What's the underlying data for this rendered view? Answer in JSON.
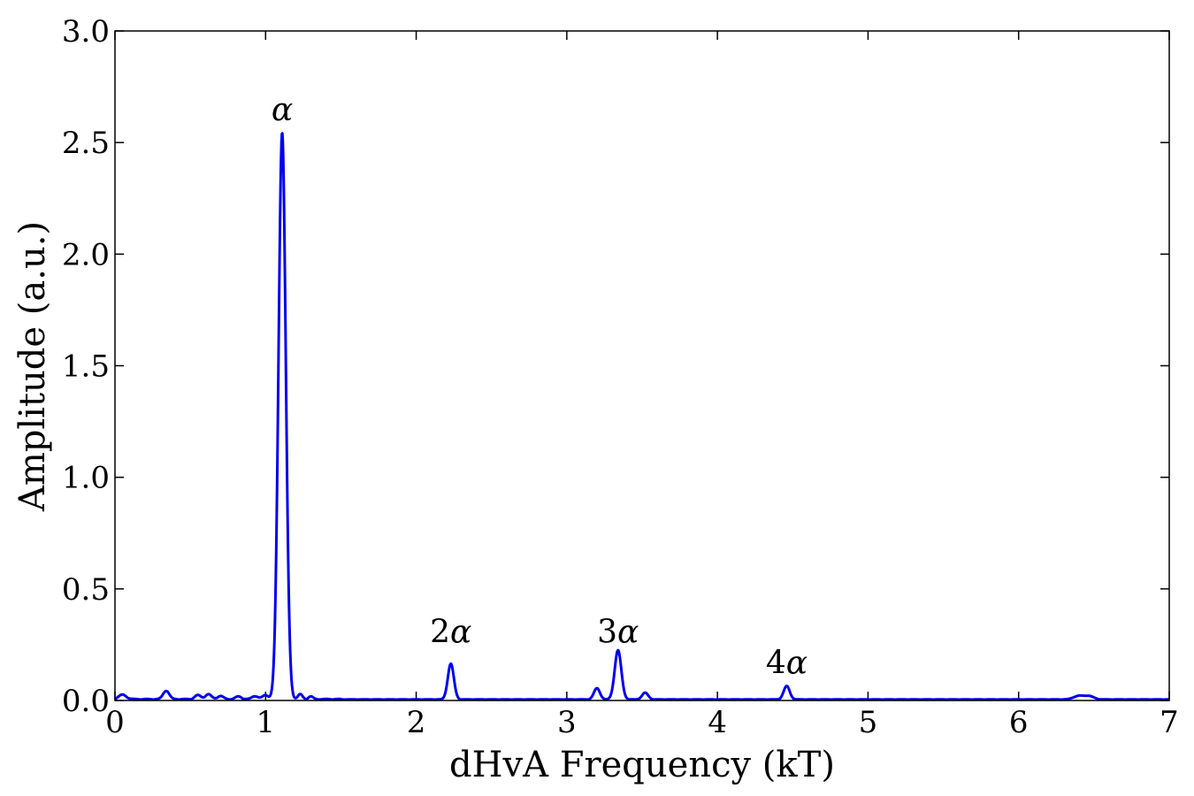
{
  "chart_data": {
    "type": "line",
    "title": "",
    "xlabel": "dHvA Frequency (kT)",
    "ylabel": "Amplitude (a.u.)",
    "xlim": [
      0,
      7
    ],
    "ylim": [
      0,
      3.0
    ],
    "xticks": [
      "0",
      "1",
      "2",
      "3",
      "4",
      "5",
      "6",
      "7"
    ],
    "yticks": [
      "0.0",
      "0.5",
      "1.0",
      "1.5",
      "2.0",
      "2.5",
      "3.0"
    ],
    "grid": false,
    "line_color": "#0000ee",
    "series": [
      {
        "peaks": [
          {
            "x": 0.05,
            "y": 0.02,
            "w": 0.025
          },
          {
            "x": 0.34,
            "y": 0.038,
            "w": 0.02
          },
          {
            "x": 0.55,
            "y": 0.018,
            "w": 0.02
          },
          {
            "x": 0.62,
            "y": 0.022,
            "w": 0.02
          },
          {
            "x": 0.7,
            "y": 0.014,
            "w": 0.02
          },
          {
            "x": 0.82,
            "y": 0.012,
            "w": 0.02
          },
          {
            "x": 0.93,
            "y": 0.014,
            "w": 0.02
          },
          {
            "x": 1.0,
            "y": 0.018,
            "w": 0.02
          },
          {
            "x": 1.11,
            "y": 2.54,
            "w": 0.024
          },
          {
            "x": 1.23,
            "y": 0.022,
            "w": 0.015
          },
          {
            "x": 1.3,
            "y": 0.012,
            "w": 0.015
          },
          {
            "x": 2.23,
            "y": 0.16,
            "w": 0.02
          },
          {
            "x": 3.2,
            "y": 0.05,
            "w": 0.02
          },
          {
            "x": 3.34,
            "y": 0.22,
            "w": 0.022
          },
          {
            "x": 3.52,
            "y": 0.03,
            "w": 0.02
          },
          {
            "x": 4.46,
            "y": 0.06,
            "w": 0.02
          },
          {
            "x": 6.4,
            "y": 0.016,
            "w": 0.035
          },
          {
            "x": 6.47,
            "y": 0.014,
            "w": 0.03
          }
        ]
      }
    ],
    "annotations": [
      {
        "prefix": "",
        "greek": "α",
        "x": 1.11,
        "y": 2.6
      },
      {
        "prefix": "2",
        "greek": "α",
        "x": 2.23,
        "y": 0.26
      },
      {
        "prefix": "3",
        "greek": "α",
        "x": 3.34,
        "y": 0.26
      },
      {
        "prefix": "4",
        "greek": "α",
        "x": 4.46,
        "y": 0.12
      }
    ]
  }
}
